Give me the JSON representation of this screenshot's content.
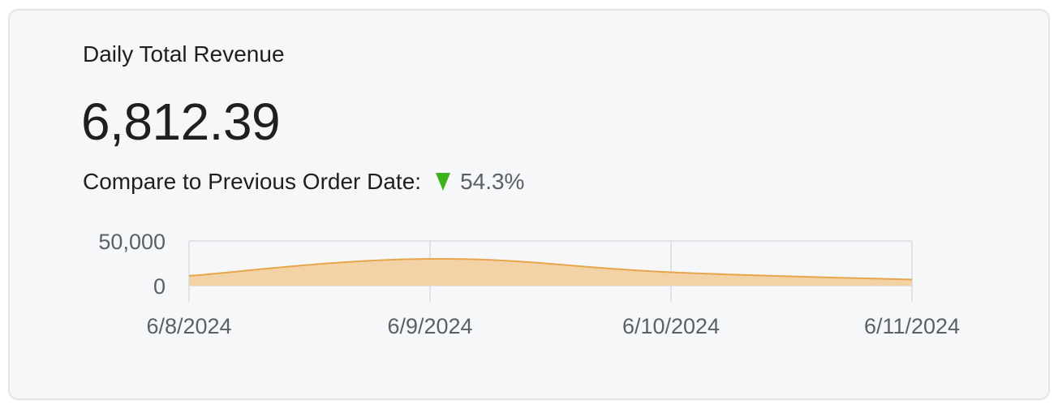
{
  "card": {
    "title": "Daily Total Revenue",
    "value": "6,812.39",
    "compare_label": "Compare to Previous Order Date:",
    "change": "54.3%",
    "change_direction": "down",
    "change_icon": "triangle-down-icon",
    "change_color": "#3cb31d"
  },
  "chart_data": {
    "type": "area",
    "x": [
      "6/8/2024",
      "6/9/2024",
      "6/10/2024",
      "6/11/2024"
    ],
    "y_ticks": [
      "50,000",
      "0"
    ],
    "ylim": [
      0,
      50000
    ],
    "series": [
      {
        "values": [
          11000,
          30000,
          15000,
          6812.39
        ],
        "color": "#e8a54b",
        "fill": "#f3d3a6"
      }
    ],
    "grid": true,
    "title": "",
    "xlabel": "",
    "ylabel": ""
  }
}
